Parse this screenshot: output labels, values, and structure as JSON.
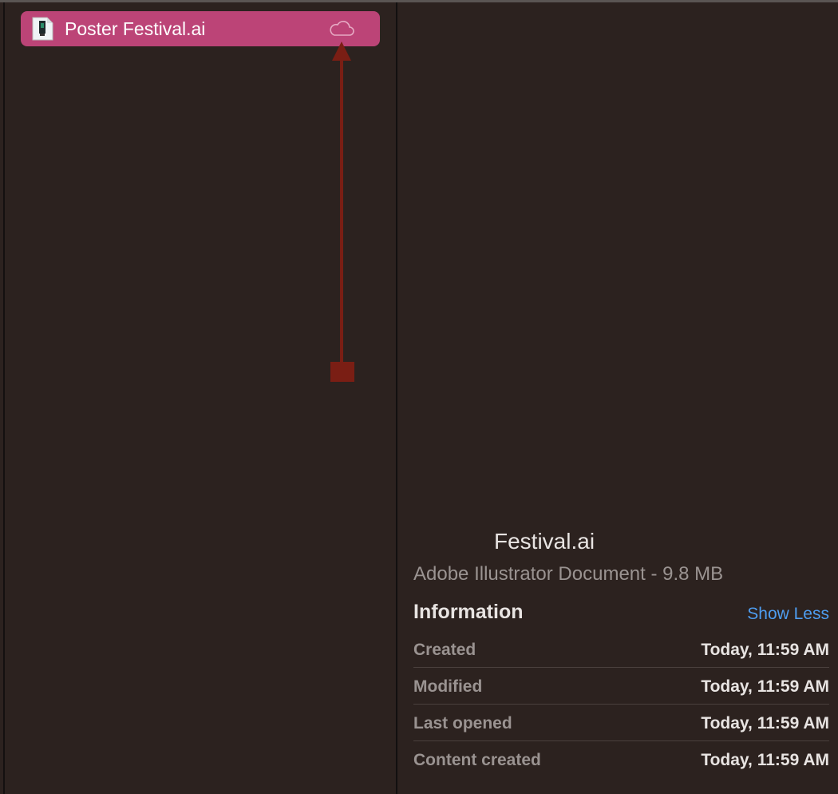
{
  "file_list": {
    "selected_item": {
      "name": "Poster Festival.ai",
      "icon": "illustrator-file-icon",
      "status_icon": "cloud-icon"
    },
    "selection_color": "#bc4477"
  },
  "annotation": {
    "type": "arrow",
    "color": "#7a1e14",
    "points_to": "cloud-icon"
  },
  "preview": {
    "title": "Festival.ai",
    "subtitle": "Adobe Illustrator Document - 9.8 MB",
    "information_label": "Information",
    "show_less_label": "Show Less",
    "link_color": "#4e9df0",
    "rows": [
      {
        "label": "Created",
        "value": "Today, 11:59 AM"
      },
      {
        "label": "Modified",
        "value": "Today, 11:59 AM"
      },
      {
        "label": "Last opened",
        "value": "Today, 11:59 AM"
      },
      {
        "label": "Content created",
        "value": "Today, 11:59 AM"
      }
    ]
  }
}
